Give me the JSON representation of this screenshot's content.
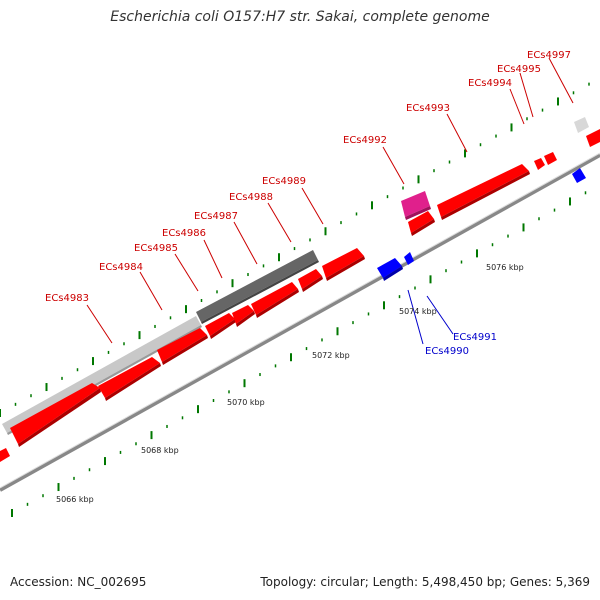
{
  "title": "Escherichia coli O157:H7 str. Sakai, complete genome",
  "footer": {
    "accession": "Accession: NC_002695",
    "summary": "Topology: circular; Length: 5,498,450 bp; Genes: 5,369"
  },
  "colors": {
    "forward": "#ff0000",
    "reverse": "#0000ff",
    "pink": "#e0208c",
    "gray_light": "#c8c8c8",
    "gray_dark": "#666666",
    "tick": "#007700",
    "backbone": "#888888",
    "label_forward": "#cc0000",
    "label_reverse": "#0000cc"
  },
  "genes_forward": [
    {
      "id": "ECs4983",
      "label": "ECs4983"
    },
    {
      "id": "ECs4984",
      "label": "ECs4984"
    },
    {
      "id": "ECs4985",
      "label": "ECs4985"
    },
    {
      "id": "ECs4986",
      "label": "ECs4986"
    },
    {
      "id": "ECs4987",
      "label": "ECs4987"
    },
    {
      "id": "ECs4988",
      "label": "ECs4988"
    },
    {
      "id": "ECs4989",
      "label": "ECs4989"
    },
    {
      "id": "ECs4992",
      "label": "ECs4992"
    },
    {
      "id": "ECs4993",
      "label": "ECs4993"
    },
    {
      "id": "ECs4994",
      "label": "ECs4994"
    },
    {
      "id": "ECs4995",
      "label": "ECs4995"
    },
    {
      "id": "ECs4997",
      "label": "ECs4997"
    }
  ],
  "genes_reverse": [
    {
      "id": "ECs4990",
      "label": "ECs4990"
    },
    {
      "id": "ECs4991",
      "label": "ECs4991"
    }
  ],
  "kbp_labels": [
    "5066 kbp",
    "5068 kbp",
    "5070 kbp",
    "5072 kbp",
    "5074 kbp",
    "5076 kbp"
  ]
}
